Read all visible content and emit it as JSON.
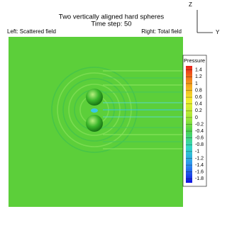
{
  "header": {
    "title": "Two vertically aligned hard spheres",
    "subtitle": "Time step: 50",
    "left_label": "Left: Scattered field",
    "right_label": "Right: Total field"
  },
  "axes": {
    "z": "Z",
    "y": "Y"
  },
  "colorbar": {
    "title": "Pressure",
    "lim": [
      -1.92,
      1.52
    ],
    "ticks": [
      1.4,
      1.2,
      1,
      0.8,
      0.6,
      0.4,
      0.2,
      0,
      -0.2,
      -0.4,
      -0.6,
      -0.8,
      -1,
      -1.2,
      -1.4,
      -1.6,
      -1.8
    ]
  }
}
